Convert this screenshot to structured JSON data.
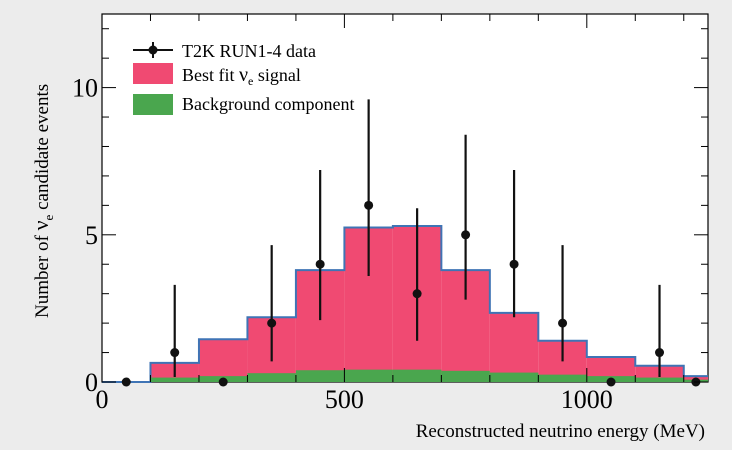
{
  "chart_data": {
    "type": "bar",
    "title": "",
    "xlabel": "Reconstructed neutrino energy (MeV)",
    "ylabel_prefix": "Number of ",
    "ylabel_symbol": "ν",
    "ylabel_sub": "e",
    "ylabel_suffix": " candidate events",
    "xlim": [
      0,
      1250
    ],
    "ylim": [
      0,
      12.5
    ],
    "x_ticks": [
      0,
      500,
      1000
    ],
    "x_tick_labels": [
      "0",
      "500",
      "1000"
    ],
    "y_ticks": [
      0,
      5,
      10
    ],
    "y_tick_labels": [
      "0",
      "5",
      "10"
    ],
    "grid": false,
    "legend_position": "top-left",
    "bin_edges": [
      0,
      100,
      200,
      300,
      400,
      500,
      600,
      700,
      800,
      900,
      1000,
      1100,
      1200,
      1250
    ],
    "series": [
      {
        "name_parts": [
          "Best fit ",
          "ν",
          "e",
          " signal"
        ],
        "kind": "step-filled",
        "color": "#f04a72",
        "edge_color": "#3f74b5",
        "values": [
          0.0,
          0.65,
          1.45,
          2.2,
          3.8,
          5.25,
          5.3,
          3.8,
          2.35,
          1.4,
          0.85,
          0.55,
          0.2
        ]
      },
      {
        "name": "Background component",
        "kind": "step-filled",
        "color": "#4aa64e",
        "values": [
          0.0,
          0.15,
          0.2,
          0.3,
          0.4,
          0.42,
          0.42,
          0.38,
          0.32,
          0.25,
          0.2,
          0.15,
          0.08
        ]
      },
      {
        "name": "T2K RUN1-4 data",
        "kind": "points-with-errors",
        "color": "#111111",
        "points": [
          {
            "x": 50,
            "y": 0,
            "lo": 0,
            "hi": 0
          },
          {
            "x": 150,
            "y": 1,
            "lo": 0.17,
            "hi": 3.3
          },
          {
            "x": 250,
            "y": 0,
            "lo": 0,
            "hi": 0
          },
          {
            "x": 350,
            "y": 2,
            "lo": 0.7,
            "hi": 4.65
          },
          {
            "x": 450,
            "y": 4,
            "lo": 2.1,
            "hi": 7.2
          },
          {
            "x": 550,
            "y": 6,
            "lo": 3.6,
            "hi": 9.6
          },
          {
            "x": 650,
            "y": 3,
            "lo": 1.4,
            "hi": 5.9
          },
          {
            "x": 750,
            "y": 5,
            "lo": 2.8,
            "hi": 8.4
          },
          {
            "x": 850,
            "y": 4,
            "lo": 2.2,
            "hi": 7.2
          },
          {
            "x": 950,
            "y": 2,
            "lo": 0.7,
            "hi": 4.65
          },
          {
            "x": 1050,
            "y": 0,
            "lo": 0,
            "hi": 0
          },
          {
            "x": 1150,
            "y": 1,
            "lo": 0.17,
            "hi": 3.3
          },
          {
            "x": 1225,
            "y": 0,
            "lo": 0,
            "hi": 0
          }
        ]
      }
    ]
  }
}
